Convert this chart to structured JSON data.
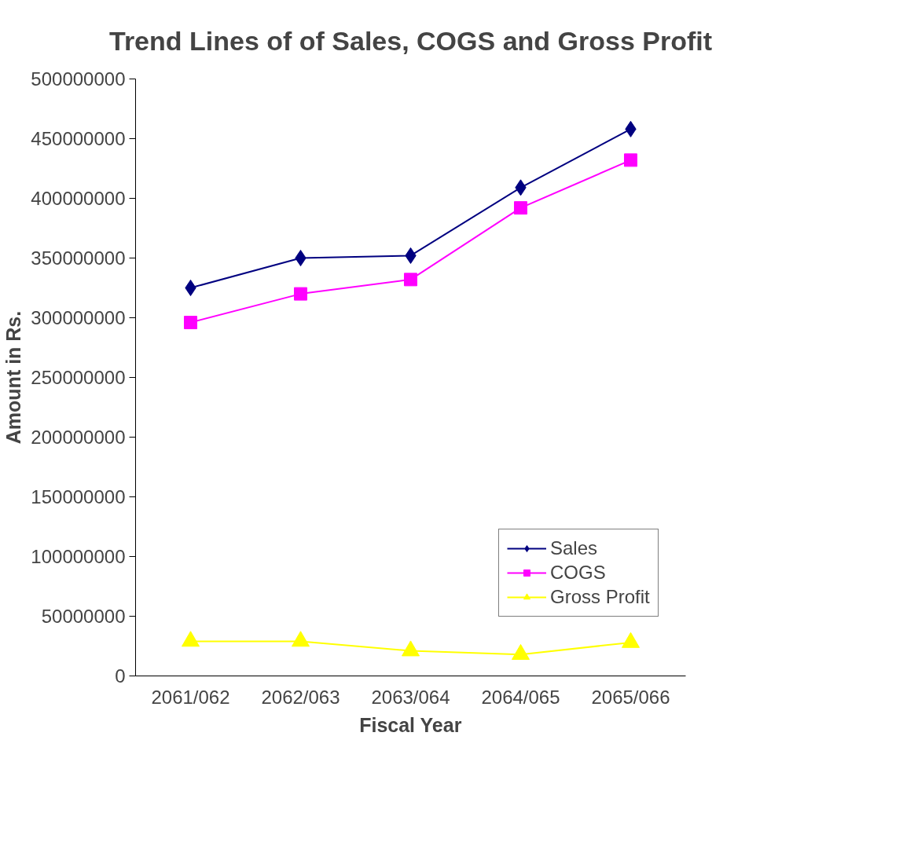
{
  "chart_data": {
    "type": "line",
    "title": "Trend Lines of of Sales, COGS and Gross Profit",
    "xlabel": "Fiscal Year",
    "ylabel": "Amount in Rs.",
    "categories": [
      "2061/062",
      "2062/063",
      "2063/064",
      "2064/065",
      "2065/066"
    ],
    "series": [
      {
        "name": "Sales",
        "color": "#000080",
        "marker": "diamond",
        "values": [
          325000000,
          350000000,
          352000000,
          409000000,
          458000000
        ]
      },
      {
        "name": "COGS",
        "color": "#ff00ff",
        "marker": "square",
        "values": [
          296000000,
          320000000,
          332000000,
          392000000,
          432000000
        ]
      },
      {
        "name": "Gross Profit",
        "color": "#ffff00",
        "marker": "triangle",
        "values": [
          29000000,
          29000000,
          21000000,
          18000000,
          28000000
        ]
      }
    ],
    "ylim": [
      0,
      500000000
    ],
    "yticks": [
      0,
      50000000,
      100000000,
      150000000,
      200000000,
      250000000,
      300000000,
      350000000,
      400000000,
      450000000,
      500000000
    ],
    "grid": false,
    "legend": "right",
    "line_style": "solid"
  }
}
